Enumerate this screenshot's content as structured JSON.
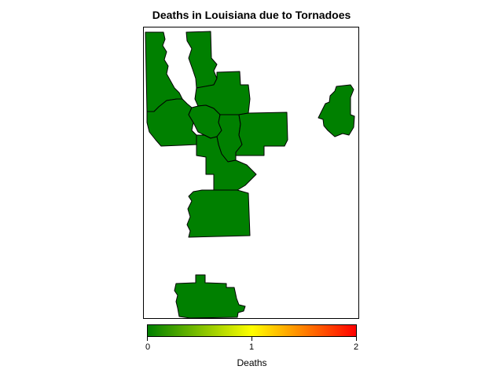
{
  "title": "Deaths in Louisiana due to Tornadoes",
  "map": {
    "region": "Louisiana",
    "fill_color": "#008000",
    "outline_color": "#000000",
    "parish_value": 0
  },
  "legend": {
    "title": "Deaths",
    "ticks": [
      "0",
      "1",
      "2"
    ],
    "gradient": [
      "#008000",
      "#ffff00",
      "#ff0000"
    ],
    "min": 0,
    "max": 2
  }
}
